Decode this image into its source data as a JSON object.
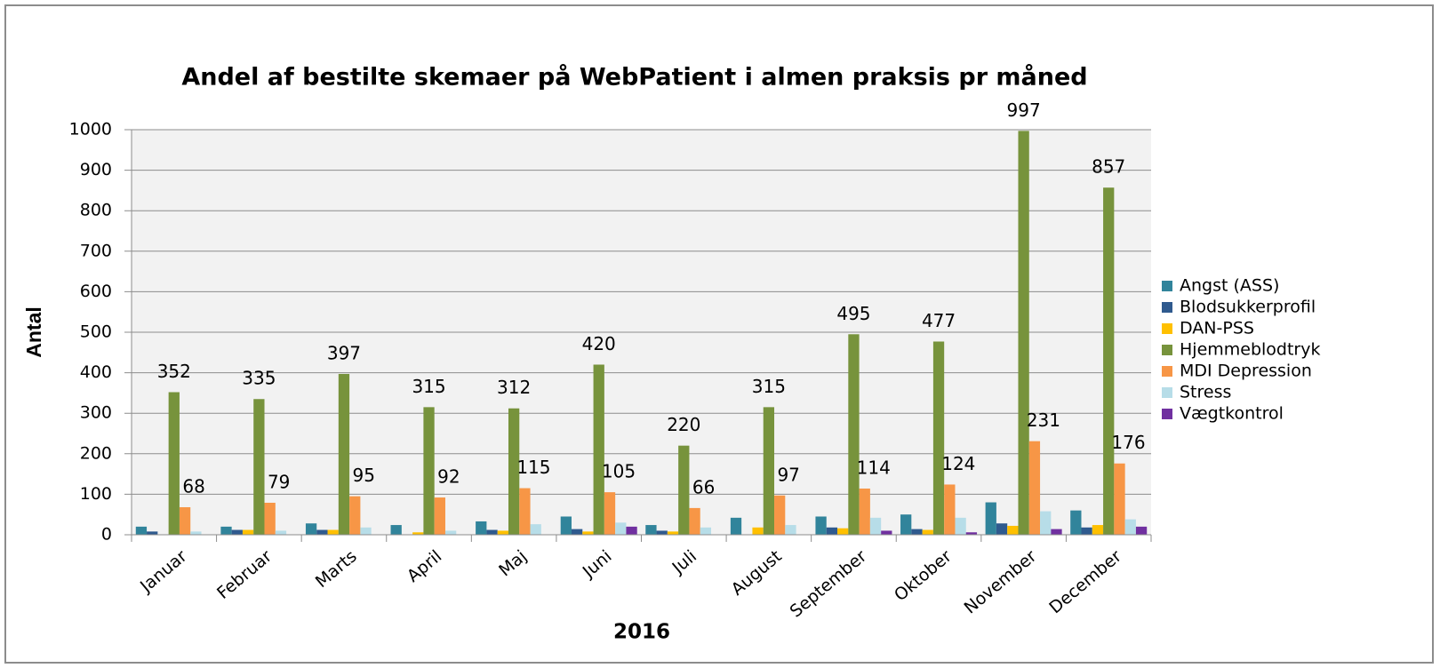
{
  "chart_data": {
    "type": "bar",
    "title": "Andel af bestilte skemaer på WebPatient i  almen praksis pr måned",
    "ylabel": "Antal",
    "xlabel": "2016",
    "categories": [
      "Januar",
      "Februar",
      "Marts",
      "April",
      "Maj",
      "Juni",
      "Juli",
      "August",
      "September",
      "Oktober",
      "November",
      "December"
    ],
    "series": [
      {
        "name": "Angst (ASS)",
        "color": "#31849b",
        "values": [
          20,
          20,
          28,
          24,
          33,
          45,
          24,
          42,
          45,
          50,
          80,
          60
        ]
      },
      {
        "name": "Blodsukkerprofil",
        "color": "#2f5a8e",
        "values": [
          8,
          12,
          12,
          0,
          12,
          14,
          10,
          0,
          18,
          14,
          28,
          18
        ]
      },
      {
        "name": "DAN-PSS",
        "color": "#ffc000",
        "values": [
          0,
          12,
          12,
          6,
          10,
          8,
          8,
          18,
          16,
          12,
          22,
          24
        ]
      },
      {
        "name": "Hjemmeblodtryk",
        "color": "#77933c",
        "values": [
          352,
          335,
          397,
          315,
          312,
          420,
          220,
          315,
          495,
          477,
          997,
          857
        ]
      },
      {
        "name": "MDI Depression",
        "color": "#f79646",
        "values": [
          68,
          79,
          95,
          92,
          115,
          105,
          66,
          97,
          114,
          124,
          231,
          176
        ]
      },
      {
        "name": "Stress",
        "color": "#b7dde8",
        "values": [
          8,
          10,
          18,
          10,
          26,
          30,
          18,
          24,
          42,
          42,
          58,
          38
        ]
      },
      {
        "name": "Vægtkontrol",
        "color": "#7030a0",
        "values": [
          0,
          0,
          0,
          0,
          0,
          20,
          0,
          0,
          10,
          6,
          14,
          20
        ]
      }
    ],
    "labeled_series": [
      3,
      4
    ],
    "ylim": [
      0,
      1000
    ],
    "yticks": [
      0,
      100,
      200,
      300,
      400,
      500,
      600,
      700,
      800,
      900,
      1000
    ],
    "grid": true,
    "legend": "right"
  }
}
